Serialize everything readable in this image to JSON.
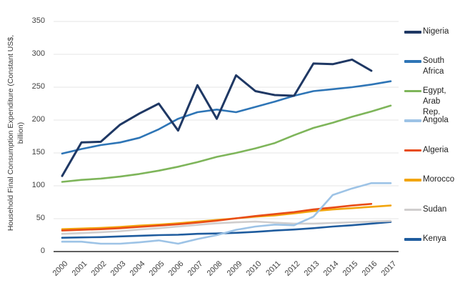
{
  "chart_data": {
    "type": "line",
    "title": "",
    "xlabel": "",
    "ylabel": "Household Final Consumption Expenditure (Constant US$, billion)",
    "ylabel_wrapped": "Household Final Consumption Expenditure (Constant US$,\nbillion)",
    "x_tick_labels": [
      "2000",
      "2001",
      "2002",
      "2003",
      "2004",
      "2005",
      "2006",
      "2007",
      "2008",
      "2009",
      "2010",
      "2011",
      "2012",
      "2013",
      "2014",
      "2015",
      "2016",
      "2017"
    ],
    "y_ticks": [
      0,
      50,
      100,
      150,
      200,
      250,
      300,
      350
    ],
    "ylim": [
      0,
      350
    ],
    "x_range": [
      2000,
      2017
    ],
    "grid": "horizontal",
    "legend_position": "right",
    "gridline_color": "#E4E4E4",
    "axis_color": "#000000",
    "tick_label_color": "#404040",
    "series": [
      {
        "name": "Nigeria",
        "legend_label": "Nigeria",
        "color": "#1F3864",
        "stroke_width": 3,
        "start_year": 2000,
        "values": [
          115,
          166,
          167,
          193,
          210,
          225,
          184,
          253,
          202,
          268,
          244,
          238,
          237,
          286,
          285,
          292,
          275
        ]
      },
      {
        "name": "South Africa",
        "legend_label": "South\nAfrica",
        "color": "#2E75B6",
        "stroke_width": 2.6,
        "start_year": 2000,
        "values": [
          149,
          156,
          162,
          166,
          173,
          186,
          202,
          212,
          216,
          212,
          220,
          228,
          237,
          244,
          247,
          250,
          254,
          259
        ]
      },
      {
        "name": "Egypt, Arab Rep.",
        "legend_label": "Egypt,\nArab\nRep.",
        "color": "#7EB55A",
        "stroke_width": 2.6,
        "start_year": 2000,
        "values": [
          106,
          109,
          111,
          114,
          118,
          123,
          129,
          136,
          144,
          150,
          157,
          165,
          177,
          188,
          196,
          205,
          213,
          222
        ]
      },
      {
        "name": "Angola",
        "legend_label": "Angola",
        "color": "#9DC3E6",
        "stroke_width": 2.6,
        "start_year": 2000,
        "values": [
          15,
          15,
          12,
          12,
          14,
          17,
          12,
          19,
          25,
          33,
          38,
          41,
          40,
          53,
          86,
          96,
          104,
          104
        ]
      },
      {
        "name": "Algeria",
        "legend_label": "Algeria",
        "color": "#E84C17",
        "stroke_width": 2.6,
        "start_year": 2000,
        "values": [
          32,
          33,
          34,
          35.5,
          37.5,
          39.5,
          41.5,
          44,
          47,
          50.5,
          54,
          57,
          60,
          64,
          67,
          70,
          72.5
        ]
      },
      {
        "name": "Morocco",
        "legend_label": "Morocco",
        "color": "#F2A50C",
        "stroke_width": 2.6,
        "start_year": 2000,
        "values": [
          34,
          35,
          36,
          37.5,
          39.5,
          41,
          43,
          45.5,
          48,
          50.5,
          53,
          55,
          58,
          61.5,
          64,
          66,
          68,
          70
        ]
      },
      {
        "name": "Sudan",
        "legend_label": "Sudan",
        "color": "#D0CECE",
        "stroke_width": 2.6,
        "start_year": 2000,
        "values": [
          27,
          28,
          29.5,
          31,
          33.5,
          35.5,
          38,
          40.5,
          43,
          44.5,
          45.5,
          44,
          42.5,
          42.5,
          43.5,
          44.5,
          45.5,
          46.5
        ]
      },
      {
        "name": "Kenya",
        "legend_label": "Kenya",
        "color": "#1F5C9E",
        "stroke_width": 2.6,
        "start_year": 2000,
        "values": [
          21,
          21.5,
          22,
          23,
          24,
          25,
          25.5,
          27,
          27.5,
          28.5,
          30,
          32,
          33.5,
          35.5,
          38,
          40,
          42.5,
          45
        ]
      }
    ]
  }
}
